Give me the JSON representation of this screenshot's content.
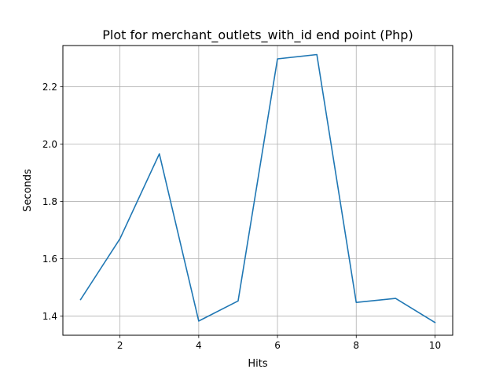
{
  "chart_data": {
    "type": "line",
    "title": "Plot for merchant_outlets_with_id end point (Php)",
    "xlabel": "Hits",
    "ylabel": "Seconds",
    "xlim": [
      0.55,
      10.45
    ],
    "ylim": [
      1.3335,
      2.3435
    ],
    "xticks": [
      2,
      4,
      6,
      8,
      10
    ],
    "yticks": [
      1.4,
      1.6,
      1.8,
      2.0,
      2.2
    ],
    "ytick_labels": [
      "1.4",
      "1.6",
      "1.8",
      "2.0",
      "2.2"
    ],
    "grid": true,
    "line_color": "#1f77b4",
    "series": [
      {
        "x": [
          1,
          2,
          3,
          4,
          5,
          6,
          7,
          8,
          9,
          10
        ],
        "values": [
          1.458,
          1.67,
          1.966,
          1.383,
          1.453,
          2.297,
          2.312,
          1.448,
          1.462,
          1.378
        ]
      }
    ]
  }
}
